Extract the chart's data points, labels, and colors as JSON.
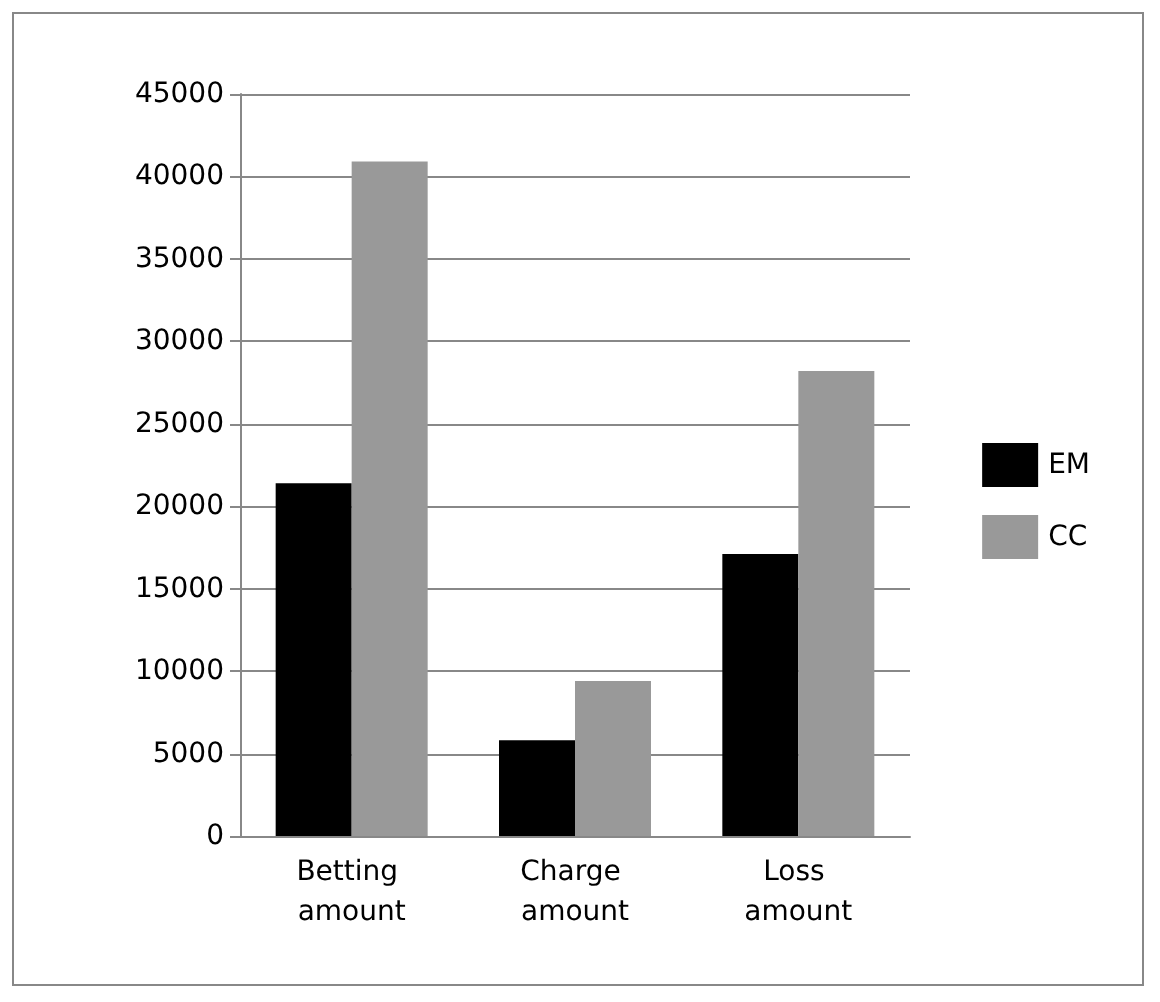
{
  "chart_data": {
    "type": "bar",
    "categories": [
      "Betting amount",
      "Charge amount",
      "Loss amount"
    ],
    "series": [
      {
        "name": "EM",
        "color": "#000000",
        "values": [
          21400,
          5800,
          17100
        ]
      },
      {
        "name": "CC",
        "color": "#999999",
        "values": [
          40900,
          9400,
          28200
        ]
      }
    ],
    "ylim": [
      0,
      45000
    ],
    "yticks": [
      0,
      5000,
      10000,
      15000,
      20000,
      25000,
      30000,
      35000,
      40000,
      45000
    ],
    "grid": "y",
    "legend": "right"
  }
}
